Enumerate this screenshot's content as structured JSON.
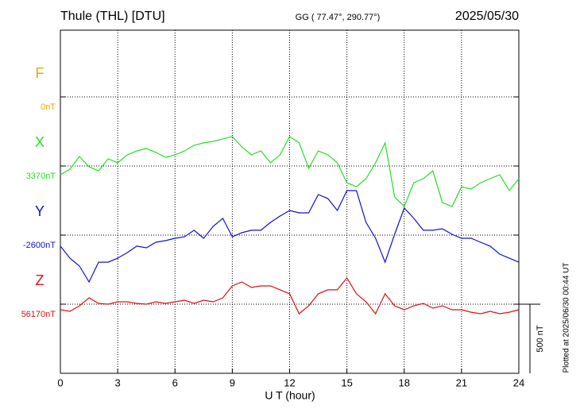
{
  "chart_data": {
    "type": "line",
    "title": "Thule (THL)  [DTU]",
    "subtitle": "GG ( 77.47°, 290.77°)",
    "date": "2025/05/30",
    "x_label": "U T (hour)",
    "footnote": "Plotted at 2025/06/30 00:44 UT",
    "xlim": [
      0,
      24
    ],
    "xticks": [
      0,
      3,
      6,
      9,
      12,
      15,
      18,
      21,
      24
    ],
    "grid": true,
    "scale_bar": {
      "value": 500,
      "label": "500 nT"
    },
    "x": [
      0,
      0.5,
      1,
      1.5,
      2,
      2.5,
      3,
      3.5,
      4,
      4.5,
      5,
      5.5,
      6,
      6.5,
      7,
      7.5,
      8,
      8.5,
      9,
      9.5,
      10,
      10.5,
      11,
      11.5,
      12,
      12.5,
      13,
      13.5,
      14,
      14.5,
      15,
      15.5,
      16,
      16.5,
      17,
      17.5,
      18,
      18.5,
      19,
      19.5,
      20,
      20.5,
      21,
      21.5,
      22,
      22.5,
      23,
      23.5,
      24
    ],
    "series": [
      {
        "name": "F",
        "color": "#f0a800",
        "baseline": {
          "value": 0,
          "label": "0nT"
        },
        "values": [
          null,
          null,
          null,
          null,
          null,
          null,
          null,
          null,
          null,
          null,
          null,
          null,
          null,
          null,
          null,
          null,
          null,
          null,
          null,
          null,
          null,
          null,
          null,
          null,
          null,
          null,
          null,
          null,
          null,
          null,
          null,
          null,
          null,
          null,
          null,
          null,
          null,
          null,
          null,
          null,
          null,
          null,
          null,
          null,
          null,
          null,
          null,
          null,
          null
        ]
      },
      {
        "name": "X",
        "color": "#22e022",
        "baseline": {
          "value": 3370,
          "label": "3370nT"
        },
        "values": [
          3307,
          3347,
          3439,
          3364,
          3335,
          3422,
          3393,
          3451,
          3479,
          3497,
          3468,
          3433,
          3451,
          3479,
          3520,
          3537,
          3548,
          3566,
          3583,
          3508,
          3451,
          3479,
          3393,
          3451,
          3583,
          3537,
          3353,
          3479,
          3451,
          3393,
          3249,
          3220,
          3278,
          3393,
          3537,
          3146,
          3077,
          3249,
          3278,
          3335,
          3105,
          3077,
          3220,
          3203,
          3249,
          3278,
          3307,
          3192,
          3278
        ]
      },
      {
        "name": "Y",
        "color": "#1010d8",
        "baseline": {
          "value": -2600,
          "label": "-2600nT"
        },
        "values": [
          -2680,
          -2767,
          -2824,
          -2939,
          -2796,
          -2796,
          -2767,
          -2727,
          -2680,
          -2692,
          -2652,
          -2640,
          -2623,
          -2612,
          -2565,
          -2623,
          -2537,
          -2479,
          -2612,
          -2583,
          -2565,
          -2565,
          -2508,
          -2462,
          -2422,
          -2439,
          -2439,
          -2307,
          -2335,
          -2422,
          -2278,
          -2278,
          -2508,
          -2623,
          -2796,
          -2594,
          -2404,
          -2479,
          -2565,
          -2565,
          -2554,
          -2594,
          -2623,
          -2623,
          -2652,
          -2680,
          -2738,
          -2767,
          -2796
        ]
      },
      {
        "name": "Z",
        "color": "#e01010",
        "baseline": {
          "value": 56170,
          "label": "56170nT"
        },
        "values": [
          56130,
          56118,
          56158,
          56216,
          56176,
          56170,
          56187,
          56187,
          56176,
          56170,
          56187,
          56176,
          56187,
          56199,
          56176,
          56199,
          56187,
          56216,
          56302,
          56331,
          56291,
          56302,
          56302,
          56274,
          56245,
          56101,
          56158,
          56245,
          56274,
          56274,
          56360,
          56245,
          56187,
          56101,
          56245,
          56158,
          56130,
          56158,
          56176,
          56141,
          56158,
          56130,
          56130,
          56112,
          56101,
          56118,
          56101,
          56112,
          56130
        ]
      }
    ]
  }
}
